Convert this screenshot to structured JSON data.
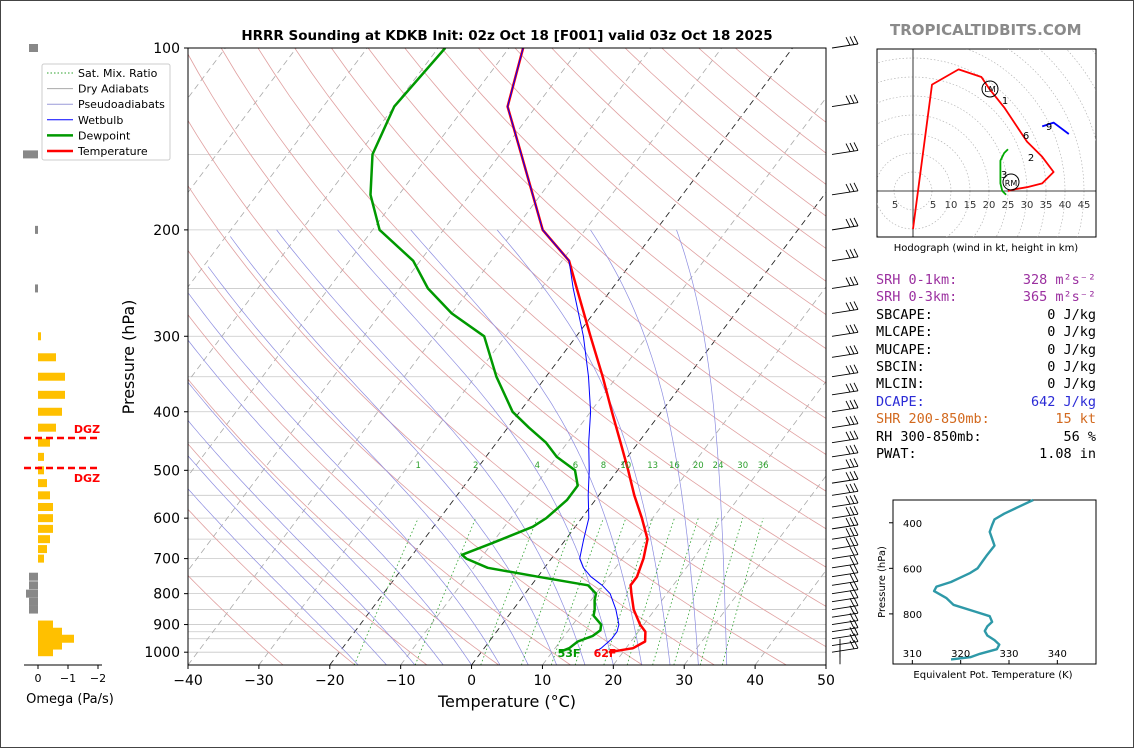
{
  "brand": "TROPICALTIDBITS.COM",
  "title": "HRRR Sounding at KDKB Init: 02z Oct 18 [F001] valid 03z Oct 18 2025",
  "skewt": {
    "xlabel": "Temperature (°C)",
    "ylabel": "Pressure (hPa)",
    "x_ticks": [
      "−40",
      "−30",
      "−20",
      "−10",
      "0",
      "10",
      "20",
      "30",
      "40",
      "50"
    ],
    "y_ticks": [
      "100",
      "200",
      "300",
      "400",
      "500",
      "600",
      "700",
      "800",
      "900",
      "1000"
    ],
    "surface_dewpoint_label": "53F",
    "surface_temp_label": "62F",
    "mixing_ratio_labels": [
      "1",
      "2",
      "4",
      "6",
      "8",
      "10",
      "13",
      "16",
      "20",
      "24",
      "30",
      "36"
    ]
  },
  "legend": {
    "items": [
      {
        "label": "Sat. Mix. Ratio",
        "color": "#2ca02c",
        "style": "dotted"
      },
      {
        "label": "Dry Adiabats",
        "color": "#aaaaaa",
        "style": "solid"
      },
      {
        "label": "Pseudoadiabats",
        "color": "#9a9ad8",
        "style": "solid"
      },
      {
        "label": "Wetbulb",
        "color": "#0000ff",
        "style": "solid"
      },
      {
        "label": "Dewpoint",
        "color": "#009900",
        "style": "solid"
      },
      {
        "label": "Temperature",
        "color": "#ff0000",
        "style": "solid"
      }
    ]
  },
  "omega": {
    "xlabel": "Omega (Pa/s)",
    "x_ticks": [
      "0",
      "−1",
      "−2"
    ],
    "dgz_label": "DGZ"
  },
  "hodograph": {
    "caption": "Hodograph (wind in kt, height in km)",
    "x_ticks": [
      "5",
      "5",
      "10",
      "15",
      "20",
      "25",
      "30",
      "35",
      "40",
      "45"
    ],
    "point_labels": [
      "LM",
      "1",
      "6",
      "9",
      "2",
      "3",
      "RM"
    ]
  },
  "indices": [
    {
      "label": "SRH 0-1km:",
      "value": "328 m²s⁻²",
      "color": "#9b30a0"
    },
    {
      "label": "SRH 0-3km:",
      "value": "365 m²s⁻²",
      "color": "#9b30a0"
    },
    {
      "label": "SBCAPE:",
      "value": "0 J/kg",
      "color": "#000000"
    },
    {
      "label": "MLCAPE:",
      "value": "0 J/kg",
      "color": "#000000"
    },
    {
      "label": "MUCAPE:",
      "value": "0 J/kg",
      "color": "#000000"
    },
    {
      "label": "SBCIN:",
      "value": "0 J/kg",
      "color": "#000000"
    },
    {
      "label": "MLCIN:",
      "value": "0 J/kg",
      "color": "#000000"
    },
    {
      "label": "DCAPE:",
      "value": "642 J/kg",
      "color": "#2b2bd6"
    },
    {
      "label": "SHR 200-850mb:",
      "value": "15 kt",
      "color": "#d2691e"
    },
    {
      "label": "RH 300-850mb:",
      "value": "56 %",
      "color": "#000000"
    },
    {
      "label": "PWAT:",
      "value": "1.08 in",
      "color": "#000000"
    }
  ],
  "theta_e": {
    "xlabel": "Equivalent Pot. Temperature (K)",
    "ylabel": "Pressure (hPa)",
    "x_ticks": [
      "310",
      "320",
      "330",
      "340"
    ],
    "y_ticks": [
      "400",
      "600",
      "800"
    ],
    "color": "#2e99a8"
  },
  "chart_data": [
    {
      "type": "line",
      "title": "HRRR Sounding at KDKB Init: 02z Oct 18 [F001] valid 03z Oct 18 2025",
      "xlabel": "Temperature (°C)",
      "ylabel": "Pressure (hPa)",
      "xlim": [
        -40,
        50
      ],
      "ylim": [
        1050,
        100
      ],
      "y_scale": "log",
      "legend_position": "top-left",
      "series": [
        {
          "name": "Temperature",
          "color": "#ff0000",
          "points": [
            [
              1000,
              18
            ],
            [
              985,
              21
            ],
            [
              960,
              22
            ],
            [
              925,
              21
            ],
            [
              900,
              19.5
            ],
            [
              850,
              17
            ],
            [
              800,
              15
            ],
            [
              775,
              14
            ],
            [
              750,
              14
            ],
            [
              700,
              13
            ],
            [
              650,
              11.5
            ],
            [
              600,
              8.5
            ],
            [
              550,
              5
            ],
            [
              500,
              1.5
            ],
            [
              450,
              -2.5
            ],
            [
              400,
              -7
            ],
            [
              350,
              -12
            ],
            [
              300,
              -18
            ],
            [
              250,
              -25
            ],
            [
              225,
              -29
            ],
            [
              200,
              -36
            ],
            [
              150,
              -47
            ],
            [
              125,
              -54
            ],
            [
              100,
              -58
            ]
          ]
        },
        {
          "name": "Wetbulb",
          "color": "#0000ff",
          "points": [
            [
              1000,
              16
            ],
            [
              985,
              16.5
            ],
            [
              950,
              17
            ],
            [
              925,
              17
            ],
            [
              900,
              16.5
            ],
            [
              850,
              14.5
            ],
            [
              800,
              12
            ],
            [
              775,
              10
            ],
            [
              750,
              7.5
            ],
            [
              725,
              5.5
            ],
            [
              700,
              4
            ],
            [
              650,
              2.5
            ],
            [
              600,
              1
            ],
            [
              550,
              -1.5
            ],
            [
              500,
              -4
            ],
            [
              450,
              -7
            ],
            [
              400,
              -10
            ],
            [
              350,
              -14
            ],
            [
              300,
              -19
            ],
            [
              250,
              -25.5
            ],
            [
              225,
              -29
            ],
            [
              200,
              -36
            ],
            [
              150,
              -47
            ],
            [
              125,
              -54
            ],
            [
              100,
              -58
            ]
          ]
        },
        {
          "name": "Dewpoint",
          "color": "#009900",
          "points": [
            [
              1000,
              11
            ],
            [
              985,
              12
            ],
            [
              960,
              12.5
            ],
            [
              940,
              14
            ],
            [
              920,
              14.5
            ],
            [
              900,
              14
            ],
            [
              870,
              12
            ],
            [
              850,
              11.5
            ],
            [
              820,
              10.5
            ],
            [
              800,
              10
            ],
            [
              775,
              8
            ],
            [
              750,
              0
            ],
            [
              725,
              -8
            ],
            [
              700,
              -12
            ],
            [
              690,
              -13
            ],
            [
              660,
              -10
            ],
            [
              620,
              -6
            ],
            [
              600,
              -5
            ],
            [
              560,
              -4
            ],
            [
              530,
              -4
            ],
            [
              500,
              -6
            ],
            [
              475,
              -10
            ],
            [
              450,
              -13
            ],
            [
              425,
              -17
            ],
            [
              400,
              -21
            ],
            [
              350,
              -27
            ],
            [
              300,
              -33
            ],
            [
              275,
              -40
            ],
            [
              250,
              -46
            ],
            [
              225,
              -51
            ],
            [
              200,
              -59
            ],
            [
              175,
              -64
            ],
            [
              150,
              -68
            ],
            [
              125,
              -70
            ],
            [
              100,
              -69
            ]
          ]
        }
      ]
    },
    {
      "type": "line",
      "title": "",
      "xlabel": "Equivalent Pot. Temperature (K)",
      "ylabel": "Pressure (hPa)",
      "xlim": [
        306,
        348
      ],
      "ylim": [
        1020,
        300
      ],
      "series": [
        {
          "name": "",
          "color": "#2e99a8",
          "points": [
            [
              1000,
              318
            ],
            [
              990,
              322
            ],
            [
              975,
              324
            ],
            [
              955,
              327.5
            ],
            [
              935,
              328
            ],
            [
              915,
              327
            ],
            [
              895,
              325.5
            ],
            [
              875,
              325
            ],
            [
              855,
              325.5
            ],
            [
              835,
              326.5
            ],
            [
              810,
              326
            ],
            [
              790,
              323
            ],
            [
              760,
              318.5
            ],
            [
              730,
              317
            ],
            [
              700,
              314.5
            ],
            [
              680,
              315
            ],
            [
              660,
              318
            ],
            [
              640,
              320
            ],
            [
              620,
              322
            ],
            [
              600,
              323.5
            ],
            [
              570,
              324.5
            ],
            [
              540,
              325.5
            ],
            [
              500,
              327
            ],
            [
              470,
              326.5
            ],
            [
              440,
              326
            ],
            [
              410,
              326.5
            ],
            [
              385,
              327
            ],
            [
              360,
              329
            ],
            [
              330,
              332
            ],
            [
              300,
              335
            ]
          ]
        }
      ]
    },
    {
      "type": "line",
      "title": "",
      "xlabel": "Hodograph (wind in kt, height in km)",
      "series": [
        {
          "name": "",
          "color": "#ff0000",
          "points": [
            [
              0,
              -10
            ],
            [
              5,
              28
            ],
            [
              12,
              32
            ],
            [
              18,
              30
            ],
            [
              20,
              27
            ],
            [
              24,
              22
            ],
            [
              28,
              16
            ],
            [
              30,
              13
            ],
            [
              34,
              9
            ],
            [
              37,
              5
            ],
            [
              34,
              2
            ],
            [
              30,
              1
            ],
            [
              27,
              0.5
            ],
            [
              25,
              0
            ]
          ]
        },
        {
          "name": "",
          "color": "#0000ff",
          "points": [
            [
              34,
              17
            ],
            [
              37,
              18
            ],
            [
              41,
              15
            ]
          ]
        },
        {
          "name": "",
          "color": "#00aa00",
          "points": [
            [
              25,
              11
            ],
            [
              24,
              10
            ],
            [
              23,
              8
            ],
            [
              23,
              4
            ],
            [
              23,
              2
            ],
            [
              23.5,
              0
            ],
            [
              24.5,
              -1
            ]
          ]
        }
      ]
    }
  ]
}
